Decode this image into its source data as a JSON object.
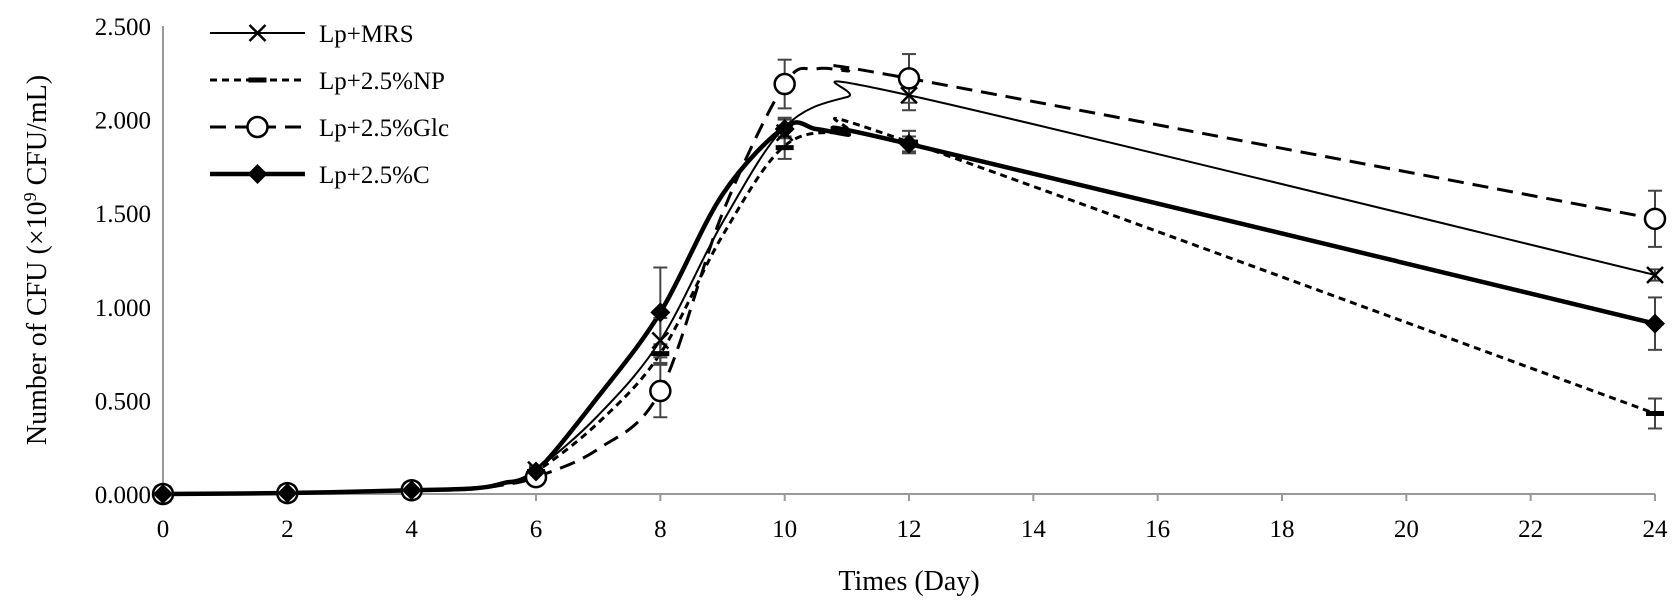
{
  "chart_data": {
    "type": "line",
    "title": "",
    "xlabel": "Times (Day)",
    "ylabel_prefix": "Number of CFU (×10",
    "ylabel_exp": "9",
    "ylabel_suffix": " CFU/mL)",
    "xlim": [
      0,
      24
    ],
    "ylim": [
      0,
      2.5
    ],
    "x_ticks": [
      0,
      2,
      4,
      6,
      8,
      10,
      12,
      14,
      16,
      18,
      20,
      22,
      24
    ],
    "x_tick_labels": [
      "0",
      "2",
      "4",
      "6",
      "8",
      "10",
      "12",
      "14",
      "16",
      "18",
      "20",
      "22",
      "24"
    ],
    "y_ticks": [
      0,
      0.5,
      1.0,
      1.5,
      2.0,
      2.5
    ],
    "y_tick_labels": [
      "0.000",
      "0.500",
      "1.000",
      "1.500",
      "2.000",
      "2.500"
    ],
    "grid": false,
    "legend_position": "top-left",
    "x": [
      0,
      2,
      4,
      6,
      8,
      10,
      12,
      24
    ],
    "series": [
      {
        "name": "Lp+MRS",
        "marker": "x",
        "line_style": "solid-thin",
        "values": [
          0.0,
          0.005,
          0.02,
          0.13,
          0.82,
          1.93,
          2.13,
          1.17
        ],
        "errors": [
          0.005,
          0.005,
          0.01,
          0.02,
          0.12,
          0.08,
          0.08,
          0.03
        ],
        "curve_x": [
          0,
          2,
          4,
          5,
          5.5,
          6,
          7,
          8,
          9,
          10,
          11,
          12,
          24
        ],
        "curve_y": [
          0.0,
          0.005,
          0.02,
          0.03,
          0.06,
          0.13,
          0.42,
          0.82,
          1.45,
          1.96,
          2.12,
          2.13,
          1.17
        ]
      },
      {
        "name": "Lp+2.5%NP",
        "marker": "dash",
        "line_style": "dotted",
        "values": [
          0.0,
          0.005,
          0.02,
          0.12,
          0.75,
          1.85,
          1.88,
          0.43
        ],
        "errors": [
          0.005,
          0.005,
          0.01,
          0.02,
          0.05,
          0.06,
          0.06,
          0.08
        ],
        "curve_x": [
          0,
          2,
          4,
          5,
          5.5,
          6,
          7,
          8,
          9,
          10,
          11,
          12,
          24
        ],
        "curve_y": [
          0.0,
          0.005,
          0.02,
          0.03,
          0.06,
          0.12,
          0.38,
          0.75,
          1.38,
          1.86,
          1.93,
          1.88,
          0.43
        ]
      },
      {
        "name": "Lp+2.5%Glc",
        "marker": "open-circle",
        "line_style": "dashed",
        "values": [
          0.0,
          0.005,
          0.02,
          0.09,
          0.55,
          2.19,
          2.22,
          1.47
        ],
        "errors": [
          0.005,
          0.005,
          0.01,
          0.02,
          0.14,
          0.13,
          0.13,
          0.15
        ],
        "curve_x": [
          0,
          2,
          4,
          5,
          5.5,
          6,
          7,
          8,
          9,
          10,
          10.5,
          11,
          12,
          24
        ],
        "curve_y": [
          0.0,
          0.005,
          0.02,
          0.03,
          0.05,
          0.09,
          0.24,
          0.55,
          1.5,
          2.19,
          2.27,
          2.26,
          2.22,
          1.47
        ]
      },
      {
        "name": "Lp+2.5%C",
        "marker": "filled-diamond",
        "line_style": "solid-thick",
        "values": [
          0.0,
          0.005,
          0.02,
          0.12,
          0.97,
          1.95,
          1.87,
          0.91
        ],
        "errors": [
          0.005,
          0.005,
          0.01,
          0.02,
          0.24,
          0.05,
          0.04,
          0.14
        ],
        "curve_x": [
          0,
          2,
          4,
          5,
          5.5,
          6,
          7,
          8,
          9,
          10,
          10.5,
          11,
          12,
          24
        ],
        "curve_y": [
          0.0,
          0.005,
          0.02,
          0.03,
          0.06,
          0.12,
          0.52,
          0.97,
          1.6,
          1.96,
          1.95,
          1.92,
          1.87,
          0.91
        ]
      }
    ]
  }
}
